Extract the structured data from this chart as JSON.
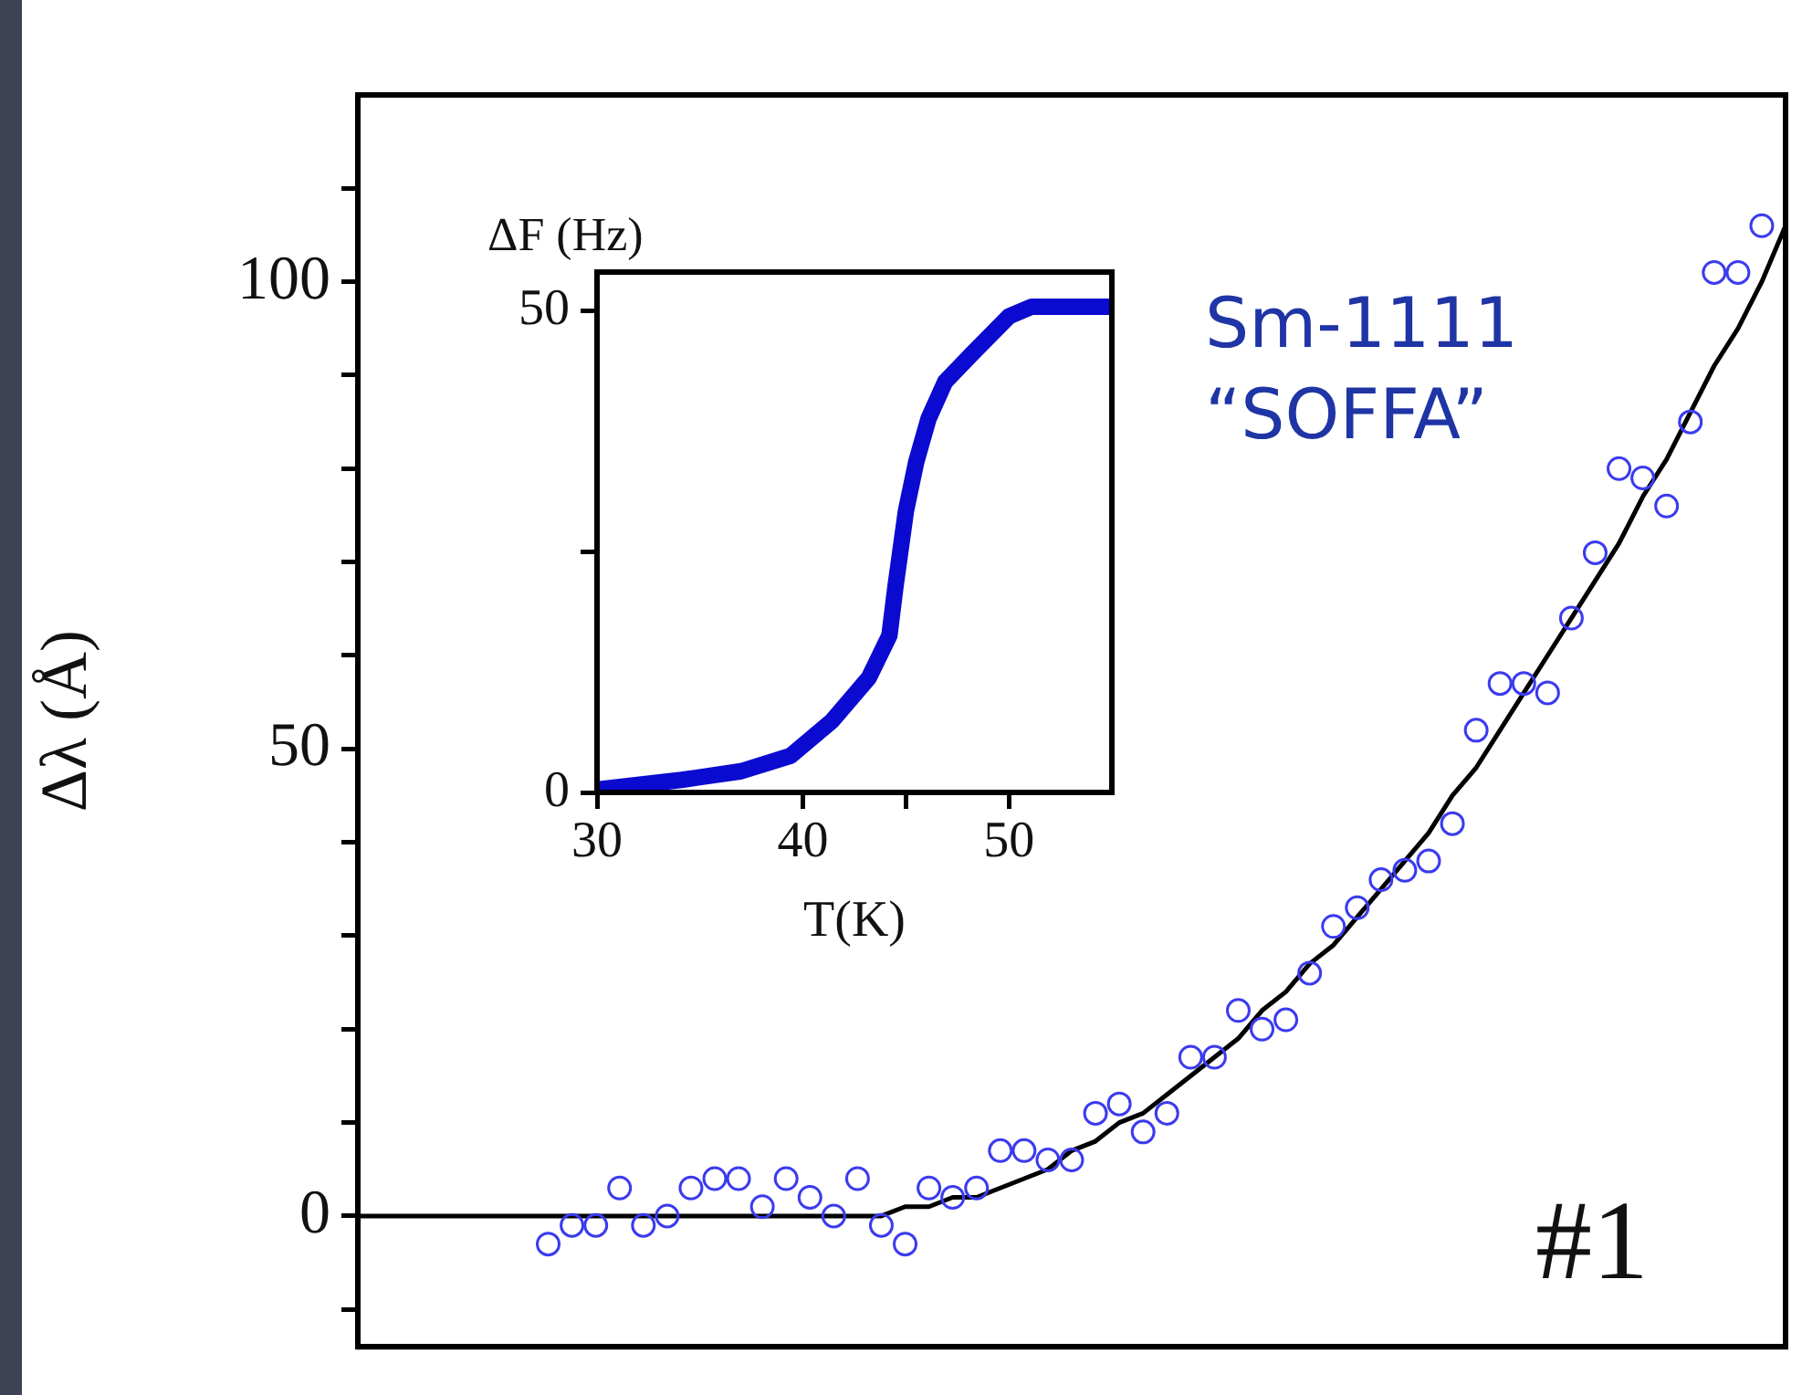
{
  "chart_data": [
    {
      "type": "scatter",
      "ylabel": "Δλ (Å)",
      "annotations": [
        "Sm-1111",
        "“SOFFA”",
        "#1"
      ],
      "categories": [
        null,
        null,
        null,
        null,
        null,
        null,
        null,
        null,
        null,
        null,
        null,
        null,
        null,
        null,
        null,
        null,
        null,
        null,
        null,
        null,
        null,
        null,
        null,
        null,
        null,
        null,
        null,
        null,
        null,
        null,
        null,
        null,
        null,
        null,
        null,
        null,
        null,
        null,
        null,
        null,
        null,
        null,
        null,
        null,
        null,
        null,
        null,
        null,
        null,
        null,
        null,
        null,
        null,
        null,
        null,
        null,
        null,
        null,
        null,
        null,
        null
      ],
      "ylim": [
        -14,
        120
      ],
      "yticks": [
        {
          "value": -10,
          "label": null
        },
        0,
        {
          "value": 10,
          "label": null
        },
        {
          "value": 20,
          "label": null
        },
        {
          "value": 30,
          "label": null
        },
        {
          "value": 40,
          "label": null
        },
        50,
        {
          "value": 60,
          "label": null
        },
        {
          "value": 70,
          "label": null
        },
        {
          "value": 80,
          "label": null
        },
        {
          "value": 90,
          "label": null
        },
        100,
        {
          "value": 110,
          "label": null
        }
      ],
      "series": [
        {
          "type": "scatter",
          "color": "#3b3bef",
          "marker": "circle",
          "values": [
            null,
            null,
            null,
            null,
            null,
            null,
            null,
            null,
            -3,
            -1,
            -1,
            3,
            -1,
            0,
            3,
            4,
            4,
            1,
            4,
            2,
            0,
            4,
            -1,
            -3,
            3,
            2,
            3,
            7,
            7,
            6,
            6,
            11,
            12,
            9,
            11,
            17,
            17,
            22,
            20,
            21,
            26,
            31,
            33,
            36,
            37,
            38,
            42,
            52,
            57,
            57,
            56,
            64,
            71,
            80,
            79,
            76,
            85,
            101,
            101,
            106,
            null
          ]
        },
        {
          "type": "line",
          "color": "#000000",
          "marker": "none",
          "values": [
            0,
            0,
            0,
            0,
            0,
            0,
            0,
            0,
            0,
            0,
            0,
            0,
            0,
            0,
            0,
            0,
            0,
            0,
            0,
            0,
            0,
            0,
            0,
            1,
            1,
            2,
            2,
            3,
            4,
            5,
            7,
            8,
            10,
            11,
            13,
            15,
            17,
            19,
            22,
            24,
            27,
            29,
            32,
            35,
            38,
            41,
            45,
            48,
            52,
            56,
            60,
            64,
            68,
            72,
            77,
            81,
            86,
            91,
            95,
            100,
            106
          ]
        }
      ],
      "legend": false,
      "grid": false,
      "tick_labels": "y"
    },
    {
      "type": "line",
      "xlabel": "T(K)",
      "ylabel": "ΔF (Hz)",
      "x": [
        30,
        34.1,
        37,
        39.4,
        41.4,
        43.2,
        44.2,
        44.5,
        45,
        45.5,
        46.1,
        46.9,
        48.2,
        50,
        51.1,
        54.9
      ],
      "values": [
        0.3,
        1.3,
        2.2,
        3.8,
        7.4,
        11.9,
        16.3,
        21.5,
        29.2,
        34.3,
        38.8,
        42.6,
        45.5,
        49.4,
        50.4,
        50.4
      ],
      "color": "#0a0ad0",
      "marker": "none",
      "xlim": [
        30,
        55
      ],
      "xticks": [
        30,
        40,
        {
          "value": 45,
          "label": null
        },
        50
      ],
      "ylim": [
        0,
        54
      ],
      "yticks": [
        0,
        {
          "value": 25,
          "label": null
        },
        50
      ],
      "grid": false,
      "legend": false
    }
  ]
}
